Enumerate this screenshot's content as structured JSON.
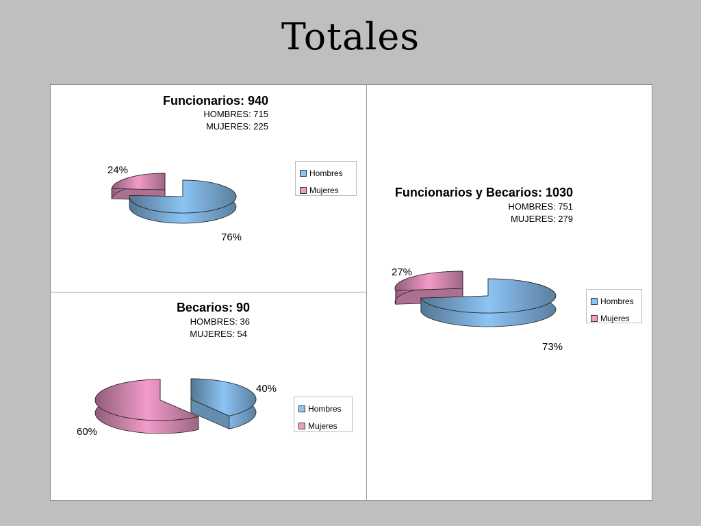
{
  "slide": {
    "title": "Totales"
  },
  "colors": {
    "hombres": "#8cc4f5",
    "mujeres": "#f29bc9"
  },
  "chart_data": [
    {
      "type": "pie",
      "title": "Funcionarios: 940",
      "lines": [
        "HOMBRES: 715",
        "MUJERES: 225"
      ],
      "series": [
        {
          "name": "Hombres",
          "value": 715,
          "label": "76%"
        },
        {
          "name": "Mujeres",
          "value": 225,
          "label": "24%"
        }
      ],
      "legend": [
        "Hombres",
        "Mujeres"
      ]
    },
    {
      "type": "pie",
      "title": "Funcionarios y Becarios: 1030",
      "lines": [
        "HOMBRES: 751",
        "MUJERES: 279"
      ],
      "series": [
        {
          "name": "Hombres",
          "value": 751,
          "label": "73%"
        },
        {
          "name": "Mujeres",
          "value": 279,
          "label": "27%"
        }
      ],
      "legend": [
        "Hombres",
        "Mujeres"
      ]
    },
    {
      "type": "pie",
      "title": "Becarios: 90",
      "lines": [
        "HOMBRES: 36",
        "MUJERES: 54"
      ],
      "series": [
        {
          "name": "Hombres",
          "value": 36,
          "label": "40%"
        },
        {
          "name": "Mujeres",
          "value": 54,
          "label": "60%"
        }
      ],
      "legend": [
        "Hombres",
        "Mujeres"
      ]
    }
  ]
}
